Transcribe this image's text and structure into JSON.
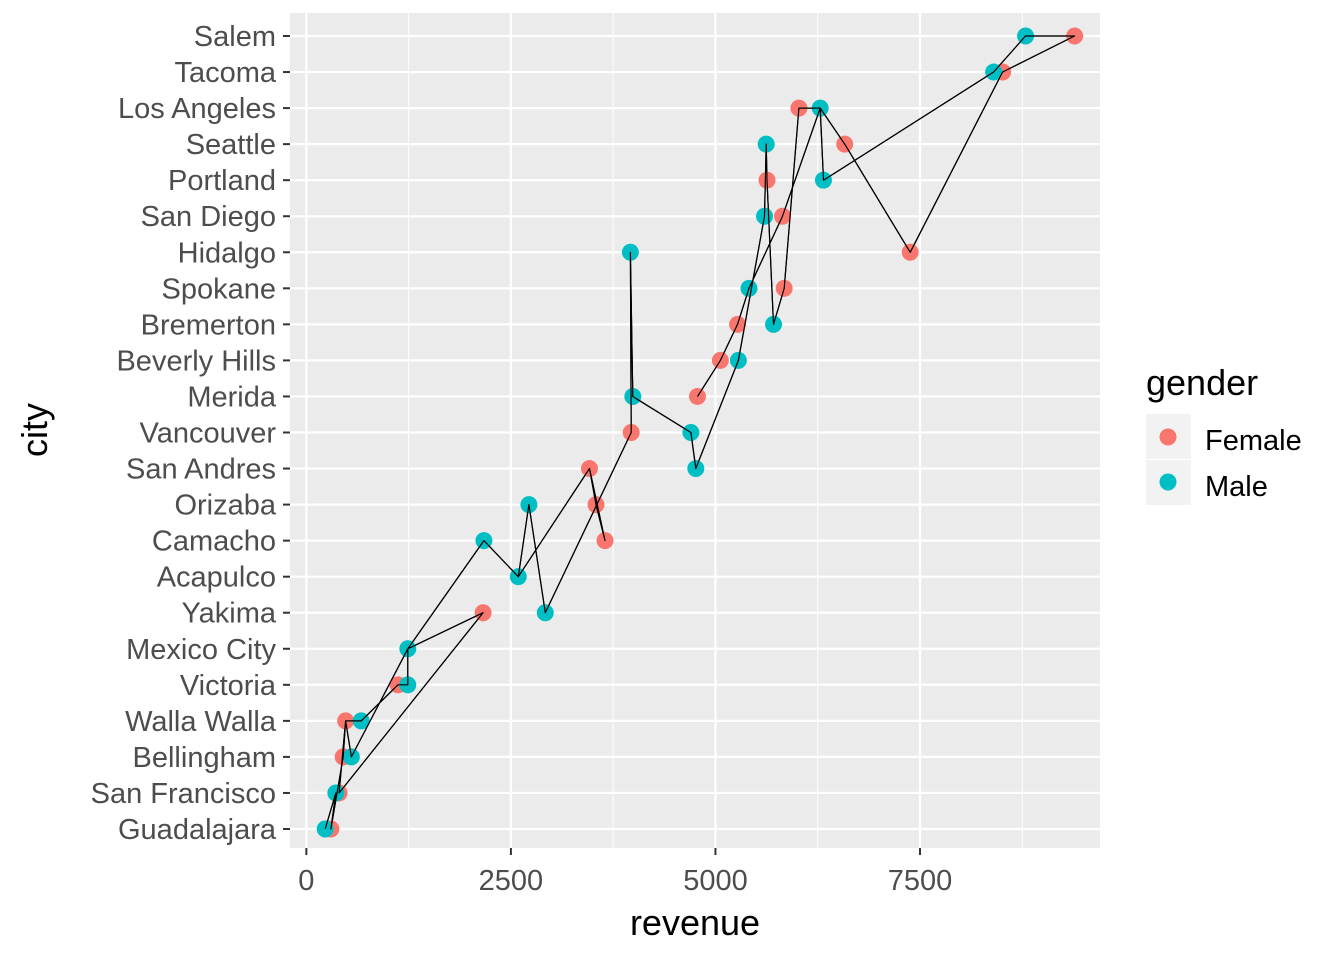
{
  "chart_data": {
    "type": "scatter",
    "xlabel": "revenue",
    "ylabel": "city",
    "xlim": [
      -200,
      9700
    ],
    "x_ticks": [
      0,
      2500,
      5000,
      7500
    ],
    "x_tick_labels": [
      "0",
      "2500",
      "5000",
      "7500"
    ],
    "categories": [
      "Guadalajara",
      "San Francisco",
      "Bellingham",
      "Walla Walla",
      "Victoria",
      "Mexico City",
      "Yakima",
      "Acapulco",
      "Camacho",
      "Orizaba",
      "San Andres",
      "Vancouver",
      "Merida",
      "Beverly Hills",
      "Bremerton",
      "Spokane",
      "Hidalgo",
      "San Diego",
      "Portland",
      "Seattle",
      "Los Angeles",
      "Tacoma",
      "Salem"
    ],
    "grid": true,
    "legend": {
      "title": "gender",
      "position": "right",
      "entries": [
        {
          "label": "Female",
          "color": "#F8766D"
        },
        {
          "label": "Male",
          "color": "#00BFC4"
        }
      ]
    },
    "series": [
      {
        "name": "Female",
        "color": "#F8766D",
        "points": [
          {
            "x": 300,
            "y": "Guadalajara"
          },
          {
            "x": 400,
            "y": "San Francisco"
          },
          {
            "x": 450,
            "y": "Bellingham"
          },
          {
            "x": 480,
            "y": "Walla Walla"
          },
          {
            "x": 1120,
            "y": "Victoria"
          },
          {
            "x": 2160,
            "y": "Yakima"
          },
          {
            "x": 3650,
            "y": "Camacho"
          },
          {
            "x": 3540,
            "y": "Orizaba"
          },
          {
            "x": 3460,
            "y": "San Andres"
          },
          {
            "x": 3970,
            "y": "Vancouver"
          },
          {
            "x": 4780,
            "y": "Merida"
          },
          {
            "x": 5060,
            "y": "Beverly Hills"
          },
          {
            "x": 5270,
            "y": "Bremerton"
          },
          {
            "x": 5840,
            "y": "Spokane"
          },
          {
            "x": 7380,
            "y": "Hidalgo"
          },
          {
            "x": 5820,
            "y": "San Diego"
          },
          {
            "x": 5630,
            "y": "Portland"
          },
          {
            "x": 6580,
            "y": "Seattle"
          },
          {
            "x": 6020,
            "y": "Los Angeles"
          },
          {
            "x": 8510,
            "y": "Tacoma"
          },
          {
            "x": 9390,
            "y": "Salem"
          }
        ]
      },
      {
        "name": "Male",
        "color": "#00BFC4",
        "points": [
          {
            "x": 230,
            "y": "Guadalajara"
          },
          {
            "x": 360,
            "y": "San Francisco"
          },
          {
            "x": 550,
            "y": "Bellingham"
          },
          {
            "x": 670,
            "y": "Walla Walla"
          },
          {
            "x": 1240,
            "y": "Victoria"
          },
          {
            "x": 1240,
            "y": "Mexico City"
          },
          {
            "x": 2920,
            "y": "Yakima"
          },
          {
            "x": 2590,
            "y": "Acapulco"
          },
          {
            "x": 2170,
            "y": "Camacho"
          },
          {
            "x": 2720,
            "y": "Orizaba"
          },
          {
            "x": 4760,
            "y": "San Andres"
          },
          {
            "x": 4700,
            "y": "Vancouver"
          },
          {
            "x": 3990,
            "y": "Merida"
          },
          {
            "x": 5280,
            "y": "Beverly Hills"
          },
          {
            "x": 5710,
            "y": "Bremerton"
          },
          {
            "x": 5410,
            "y": "Spokane"
          },
          {
            "x": 3960,
            "y": "Hidalgo"
          },
          {
            "x": 5600,
            "y": "San Diego"
          },
          {
            "x": 6320,
            "y": "Portland"
          },
          {
            "x": 5620,
            "y": "Seattle"
          },
          {
            "x": 6280,
            "y": "Los Angeles"
          },
          {
            "x": 8400,
            "y": "Tacoma"
          },
          {
            "x": 8790,
            "y": "Salem"
          }
        ]
      }
    ],
    "path": [
      {
        "x": 230,
        "y": "Guadalajara"
      },
      {
        "x": 360,
        "y": "San Francisco"
      },
      {
        "x": 300,
        "y": "Guadalajara"
      },
      {
        "x": 450,
        "y": "Bellingham"
      },
      {
        "x": 480,
        "y": "Walla Walla"
      },
      {
        "x": 550,
        "y": "Bellingham"
      },
      {
        "x": 1240,
        "y": "Mexico City"
      },
      {
        "x": 1240,
        "y": "Victoria"
      },
      {
        "x": 1120,
        "y": "Victoria"
      },
      {
        "x": 670,
        "y": "Walla Walla"
      },
      {
        "x": 480,
        "y": "Walla Walla"
      },
      {
        "x": 400,
        "y": "San Francisco"
      },
      {
        "x": 2160,
        "y": "Yakima"
      },
      {
        "x": 1240,
        "y": "Mexico City"
      },
      {
        "x": 2170,
        "y": "Camacho"
      },
      {
        "x": 2590,
        "y": "Acapulco"
      },
      {
        "x": 3460,
        "y": "San Andres"
      },
      {
        "x": 3650,
        "y": "Camacho"
      },
      {
        "x": 3540,
        "y": "Orizaba"
      },
      {
        "x": 3460,
        "y": "San Andres"
      },
      {
        "x": 2590,
        "y": "Acapulco"
      },
      {
        "x": 2720,
        "y": "Orizaba"
      },
      {
        "x": 2920,
        "y": "Yakima"
      },
      {
        "x": 3970,
        "y": "Vancouver"
      },
      {
        "x": 3960,
        "y": "Hidalgo"
      },
      {
        "x": 3990,
        "y": "Merida"
      },
      {
        "x": 4700,
        "y": "Vancouver"
      },
      {
        "x": 4760,
        "y": "San Andres"
      },
      {
        "x": 5280,
        "y": "Beverly Hills"
      },
      {
        "x": 5600,
        "y": "San Diego"
      },
      {
        "x": 5620,
        "y": "Seattle"
      },
      {
        "x": 5630,
        "y": "Portland"
      },
      {
        "x": 5710,
        "y": "Bremerton"
      },
      {
        "x": 5840,
        "y": "Spokane"
      },
      {
        "x": 6020,
        "y": "Los Angeles"
      },
      {
        "x": 6280,
        "y": "Los Angeles"
      },
      {
        "x": 6320,
        "y": "Portland"
      },
      {
        "x": 8400,
        "y": "Tacoma"
      },
      {
        "x": 8790,
        "y": "Salem"
      },
      {
        "x": 9390,
        "y": "Salem"
      },
      {
        "x": 8510,
        "y": "Tacoma"
      },
      {
        "x": 7380,
        "y": "Hidalgo"
      },
      {
        "x": 6580,
        "y": "Seattle"
      },
      {
        "x": 6280,
        "y": "Los Angeles"
      },
      {
        "x": 5820,
        "y": "San Diego"
      },
      {
        "x": 5410,
        "y": "Spokane"
      },
      {
        "x": 5270,
        "y": "Bremerton"
      },
      {
        "x": 5060,
        "y": "Beverly Hills"
      },
      {
        "x": 4780,
        "y": "Merida"
      }
    ],
    "path_color": "#000000"
  }
}
